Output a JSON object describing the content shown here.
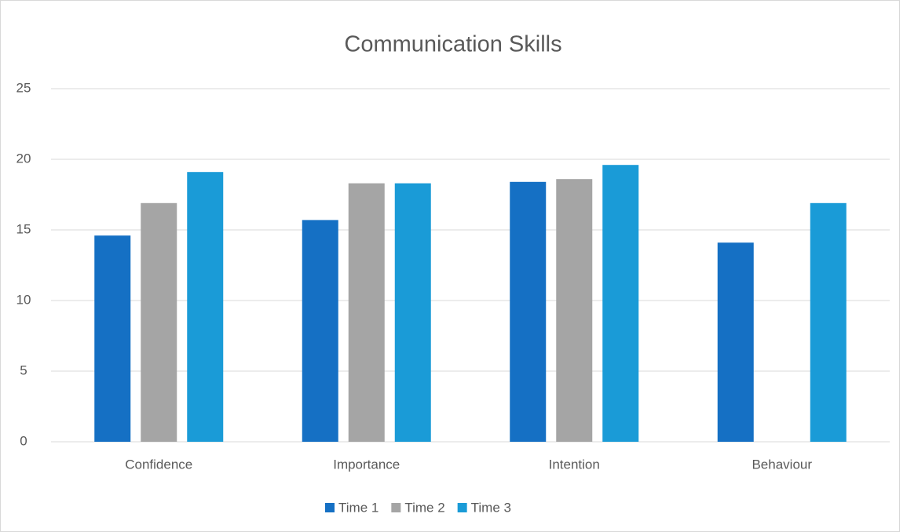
{
  "chart_data": {
    "type": "bar",
    "title": "Communication Skills",
    "categories": [
      "Confidence",
      "Importance",
      "Intention",
      "Behaviour"
    ],
    "series": [
      {
        "name": "Time 1",
        "color": "#1570c4",
        "values": [
          14.6,
          15.7,
          18.4,
          14.1
        ]
      },
      {
        "name": "Time 2",
        "color": "#a5a5a5",
        "values": [
          16.9,
          18.3,
          18.6,
          null
        ]
      },
      {
        "name": "Time 3",
        "color": "#1a9bd7",
        "values": [
          19.1,
          18.3,
          19.6,
          16.9
        ]
      }
    ],
    "ylim": [
      0,
      25
    ],
    "yticks": [
      0,
      5,
      10,
      15,
      20,
      25
    ],
    "grid": true,
    "legend": "bottom"
  }
}
